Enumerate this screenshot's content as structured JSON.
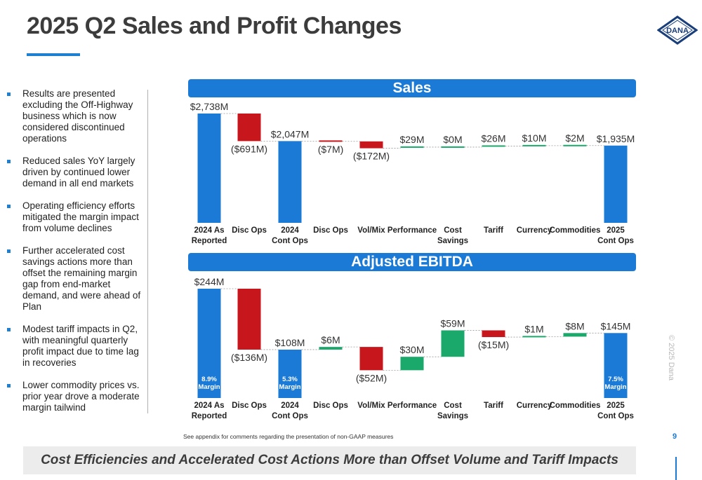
{
  "page": {
    "title": "2025 Q2 Sales and Profit Changes",
    "footnote": "See appendix for comments regarding the presentation of non-GAAP measures",
    "page_number": "9",
    "copyright": "© 2025 Dana",
    "banner": "Cost Efficiencies and Accelerated Cost Actions More than Offset Volume and Tariff Impacts",
    "logo_text": "DANA"
  },
  "bullets": [
    "Results are presented excluding the Off-Highway business which is now considered discontinued operations",
    "Reduced sales YoY largely driven by continued lower demand in all end markets",
    "Operating efficiency efforts mitigated the margin impact from volume declines",
    "Further accelerated cost savings actions more than offset the remaining margin gap from end-market demand, and were ahead of Plan",
    "Modest tariff impacts in Q2, with meaningful quarterly profit impact due to time lag in recoveries",
    "Lower commodity prices vs. prior year drove a moderate margin tailwind"
  ],
  "colors": {
    "total": "#1a7ad6",
    "decrease": "#c8161d",
    "increase": "#1aa86b",
    "section_bar": "#1a7ad6"
  },
  "chart_data": [
    {
      "type": "waterfall",
      "title": "Sales",
      "categories": [
        "2024 As Reported",
        "Disc Ops",
        "2024 Cont Ops",
        "Disc Ops",
        "Vol/Mix",
        "Performance",
        "Cost Savings",
        "Tariff",
        "Currency",
        "Commodities",
        "2025 Cont Ops"
      ],
      "values": [
        2738,
        -691,
        2047,
        -7,
        -172,
        29,
        0,
        26,
        10,
        2,
        1935
      ],
      "kinds": [
        "total",
        "delta",
        "total",
        "delta",
        "delta",
        "delta",
        "delta",
        "delta",
        "delta",
        "delta",
        "total"
      ],
      "labels": [
        "$2,738M",
        "($691M)",
        "$2,047M",
        "($7M)",
        "($172M)",
        "$29M",
        "$0M",
        "$26M",
        "$10M",
        "$2M",
        "$1,935M"
      ],
      "unit": "$M",
      "ylim": [
        0,
        2738
      ]
    },
    {
      "type": "waterfall",
      "title": "Adjusted EBITDA",
      "categories": [
        "2024 As Reported",
        "Disc Ops",
        "2024 Cont Ops",
        "Disc Ops",
        "Vol/Mix",
        "Performance",
        "Cost Savings",
        "Tariff",
        "Currency",
        "Commodities",
        "2025 Cont Ops"
      ],
      "values": [
        244,
        -136,
        108,
        6,
        -52,
        30,
        59,
        -15,
        1,
        8,
        145
      ],
      "kinds": [
        "total",
        "delta",
        "total",
        "delta",
        "delta",
        "delta",
        "delta",
        "delta",
        "delta",
        "delta",
        "total"
      ],
      "labels": [
        "$244M",
        "($136M)",
        "$108M",
        "$6M",
        "($52M)",
        "$30M",
        "$59M",
        "($15M)",
        "$1M",
        "$8M",
        "$145M"
      ],
      "margins": [
        "8.9%\nMargin",
        "",
        "5.3%\nMargin",
        "",
        "",
        "",
        "",
        "",
        "",
        "",
        "7.5%\nMargin"
      ],
      "unit": "$M",
      "ylim": [
        0,
        244
      ]
    }
  ]
}
